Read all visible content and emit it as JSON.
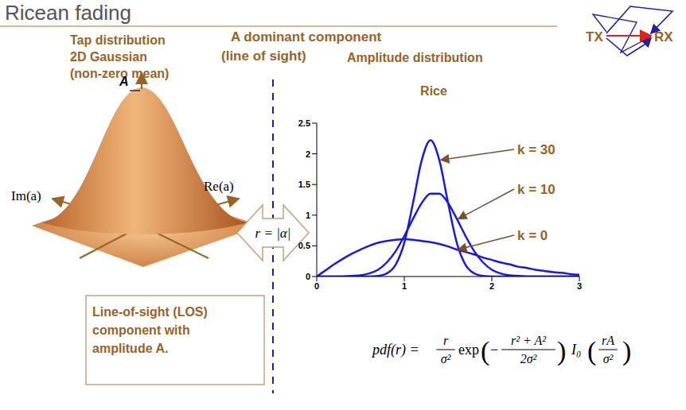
{
  "title": "Ricean fading",
  "header": [
    "A dominant component",
    "(line of sight)"
  ],
  "tx": "TX",
  "rx": "RX",
  "tap": {
    "title": [
      "Tap distribution",
      "2D Gaussian",
      "(non-zero mean)"
    ],
    "peak_label": "A",
    "im_label": "Im(a)",
    "re_label": "Re(a)"
  },
  "mapping": "r = |α|",
  "amplitude": {
    "title": "Amplitude distribution",
    "subtitle": "Rice"
  },
  "note": [
    "Line-of-sight (LOS)",
    "component with",
    "amplitude A."
  ],
  "formula": {
    "lhs": "pdf(r) =",
    "factor": {
      "num": "r",
      "den": "σ²"
    },
    "exp": "exp",
    "exponent": {
      "sign": "−",
      "num": "r² + A²",
      "den": "2σ²"
    },
    "bessel": "I₀",
    "arg": {
      "num": "rA",
      "den": "σ²"
    }
  },
  "chart_data": {
    "type": "line",
    "x": [
      0,
      0.1,
      0.2,
      0.3,
      0.4,
      0.5,
      0.6,
      0.7,
      0.8,
      0.9,
      1.0,
      1.1,
      1.2,
      1.3,
      1.4,
      1.5,
      1.6,
      1.7,
      1.8,
      1.9,
      2.0,
      2.1,
      2.2,
      2.3,
      2.4,
      2.5,
      2.6,
      2.7,
      2.8,
      2.9,
      3.0
    ],
    "series": [
      {
        "name": "k = 30",
        "color": "#1a1adf",
        "values": [
          0,
          0,
          0,
          0,
          0,
          0,
          0,
          0.01,
          0.05,
          0.19,
          0.55,
          1.2,
          1.9,
          2.22,
          1.9,
          1.2,
          0.55,
          0.19,
          0.05,
          0.01,
          0,
          0,
          0,
          0,
          0,
          0,
          0,
          0,
          0,
          0,
          0
        ]
      },
      {
        "name": "k = 10",
        "color": "#1a1adf",
        "values": [
          0,
          0,
          0,
          0,
          0.01,
          0.02,
          0.05,
          0.11,
          0.23,
          0.41,
          0.66,
          0.94,
          1.2,
          1.35,
          1.35,
          1.2,
          0.94,
          0.66,
          0.41,
          0.23,
          0.11,
          0.05,
          0.02,
          0.01,
          0,
          0,
          0,
          0,
          0,
          0,
          0
        ]
      },
      {
        "name": "k = 0",
        "color": "#1a1adf",
        "values": [
          0,
          0.1,
          0.2,
          0.29,
          0.37,
          0.44,
          0.5,
          0.55,
          0.58,
          0.6,
          0.61,
          0.6,
          0.58,
          0.56,
          0.53,
          0.49,
          0.44,
          0.4,
          0.36,
          0.31,
          0.27,
          0.23,
          0.2,
          0.16,
          0.14,
          0.11,
          0.09,
          0.07,
          0.06,
          0.04,
          0.03
        ]
      }
    ],
    "xlim": [
      0,
      3
    ],
    "xticks": [
      0,
      1,
      2,
      3
    ],
    "ylim": [
      0,
      2.5
    ],
    "yticks": [
      0,
      0.5,
      1,
      1.5,
      2,
      2.5
    ]
  }
}
